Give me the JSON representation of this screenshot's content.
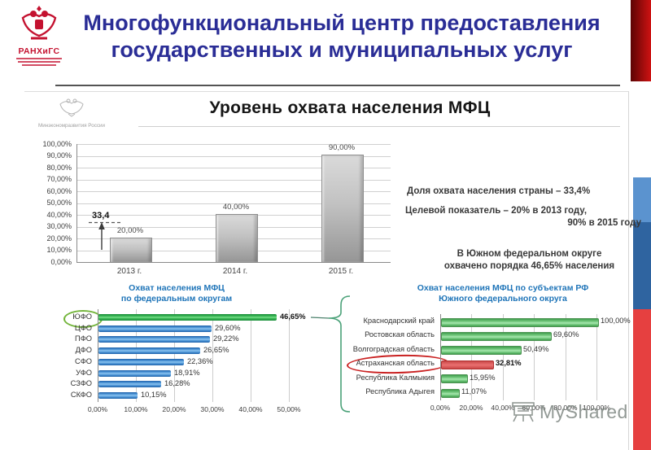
{
  "header": {
    "logo_acronym": "РАНХиГС",
    "title_line1": "Многофункциональный центр предоставления",
    "title_line2": "государственных и муниципальных услуг"
  },
  "slide": {
    "ministry_label": "Минэкономразвития России",
    "notes": {
      "note1": "Доля охвата населения страны – 33,4%",
      "note2_line1": "Целевой показатель – 20% в 2013 году,",
      "note2_line2": "90% в 2015 году",
      "note3_line1": "В Южном федеральном округе",
      "note3_line2": "охвачено порядка 46,65% населения"
    },
    "watermark": "MyShared"
  },
  "chart_data": [
    {
      "id": "coverage-by-year",
      "type": "bar",
      "title": "Уровень охвата населения МФЦ",
      "categories": [
        "2013 г.",
        "2014 г.",
        "2015 г."
      ],
      "values": [
        20.0,
        40.0,
        90.0
      ],
      "value_labels": [
        "20,00%",
        "40,00%",
        "90,00%"
      ],
      "ylim": [
        0,
        100
      ],
      "ytick_labels": [
        "100,00%",
        "90,00%",
        "80,00%",
        "70,00%",
        "60,00%",
        "50,00%",
        "40,00%",
        "30,00%",
        "20,00%",
        "10,00%",
        "0,00%"
      ],
      "grid": true,
      "legend": false,
      "annotation": {
        "label": "33,4",
        "value": 33.4
      }
    },
    {
      "id": "coverage-by-federal-district",
      "type": "bar",
      "orientation": "horizontal",
      "title_line1": "Охват населения МФЦ",
      "title_line2": "по федеральным округам",
      "categories": [
        "ЮФО",
        "ЦФО",
        "ПФО",
        "ДФО",
        "СФО",
        "УФО",
        "СЗФО",
        "СКФО"
      ],
      "values": [
        46.65,
        29.6,
        29.22,
        26.65,
        22.36,
        18.91,
        16.28,
        10.15
      ],
      "value_labels": [
        "46,65%",
        "29,60%",
        "29,22%",
        "26,65%",
        "22,36%",
        "18,91%",
        "16,28%",
        "10,15%"
      ],
      "xlim": [
        0,
        50
      ],
      "xtick_labels": [
        "0,00%",
        "10,00%",
        "20,00%",
        "30,00%",
        "40,00%",
        "50,00%"
      ],
      "highlight_index": 0,
      "grid": true
    },
    {
      "id": "coverage-yufo-subjects",
      "type": "bar",
      "orientation": "horizontal",
      "title_line1": "Охват населения МФЦ по субъектам РФ",
      "title_line2": "Южного федерального округа",
      "categories": [
        "Краснодарский край",
        "Ростовская область",
        "Волгоградская область",
        "Астраханская область",
        "Республика Калмыкия",
        "Республика Адыгея"
      ],
      "values": [
        100.0,
        69.6,
        50.49,
        32.81,
        15.95,
        11.07
      ],
      "value_labels": [
        "100,00%",
        "69,60%",
        "50,49%",
        "32,81%",
        "15,95%",
        "11,07%"
      ],
      "xlim": [
        0,
        100
      ],
      "xtick_labels": [
        "0,00%",
        "20,00%",
        "40,00%",
        "60,00%",
        "80,00%",
        "100,00%"
      ],
      "highlight_index": 3,
      "grid": true
    }
  ],
  "colors": {
    "header_title": "#2a2d96",
    "accent_red": "#c41230",
    "stripe_light_blue": "#5b93cf",
    "stripe_dark_blue": "#2f64a0",
    "stripe_red": "#e64040",
    "chart_title_blue": "#1e74b8",
    "bar_grey": "#b5b5b5",
    "bar_blue": "#2e79c0",
    "bar_green": "#2ea44f",
    "bar_light_green": "#6fca77",
    "bar_red": "#df5656"
  }
}
